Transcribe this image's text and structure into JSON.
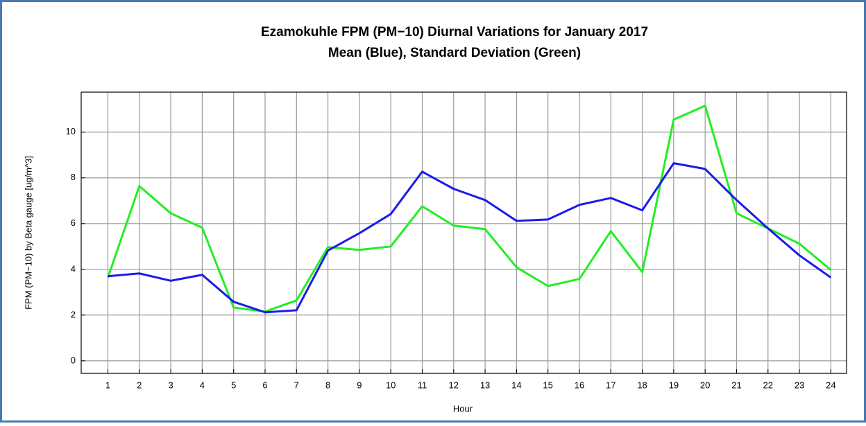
{
  "chart_data": {
    "type": "line",
    "title": "Ezamokuhle FPM (PM−10) Diurnal Variations for January 2017",
    "subtitle": "Mean (Blue), Standard Deviation (Green)",
    "x_label": "Hour",
    "y_label": "FPM (PM−10) by Beta gauge  [ug/m^3]",
    "x": [
      1,
      2,
      3,
      4,
      5,
      6,
      7,
      8,
      9,
      10,
      11,
      12,
      13,
      14,
      15,
      16,
      17,
      18,
      19,
      20,
      21,
      22,
      23,
      24
    ],
    "series": [
      {
        "color": "#1a1aee",
        "values": [
          3.7,
          3.82,
          3.5,
          3.76,
          2.58,
          2.12,
          2.21,
          4.82,
          5.58,
          6.42,
          8.27,
          7.52,
          7.03,
          6.12,
          6.18,
          6.82,
          7.12,
          6.58,
          8.64,
          8.39,
          7.03,
          5.79,
          4.61,
          3.64
        ]
      },
      {
        "color": "#22ee22",
        "values": [
          3.64,
          7.64,
          6.45,
          5.82,
          2.33,
          2.15,
          2.64,
          4.97,
          4.85,
          5.0,
          6.76,
          5.91,
          5.76,
          4.09,
          3.27,
          3.58,
          5.67,
          3.88,
          10.55,
          11.15,
          6.45,
          5.79,
          5.12,
          3.97
        ]
      }
    ],
    "xlim": [
      0.15,
      24.5
    ],
    "xticks": [
      1,
      2,
      3,
      4,
      5,
      6,
      7,
      8,
      9,
      10,
      11,
      12,
      13,
      14,
      15,
      16,
      17,
      18,
      19,
      20,
      21,
      22,
      23,
      24
    ],
    "ylim": [
      -0.55,
      11.75
    ],
    "yticks": [
      0,
      2,
      4,
      6,
      8,
      10
    ],
    "grid": true
  }
}
